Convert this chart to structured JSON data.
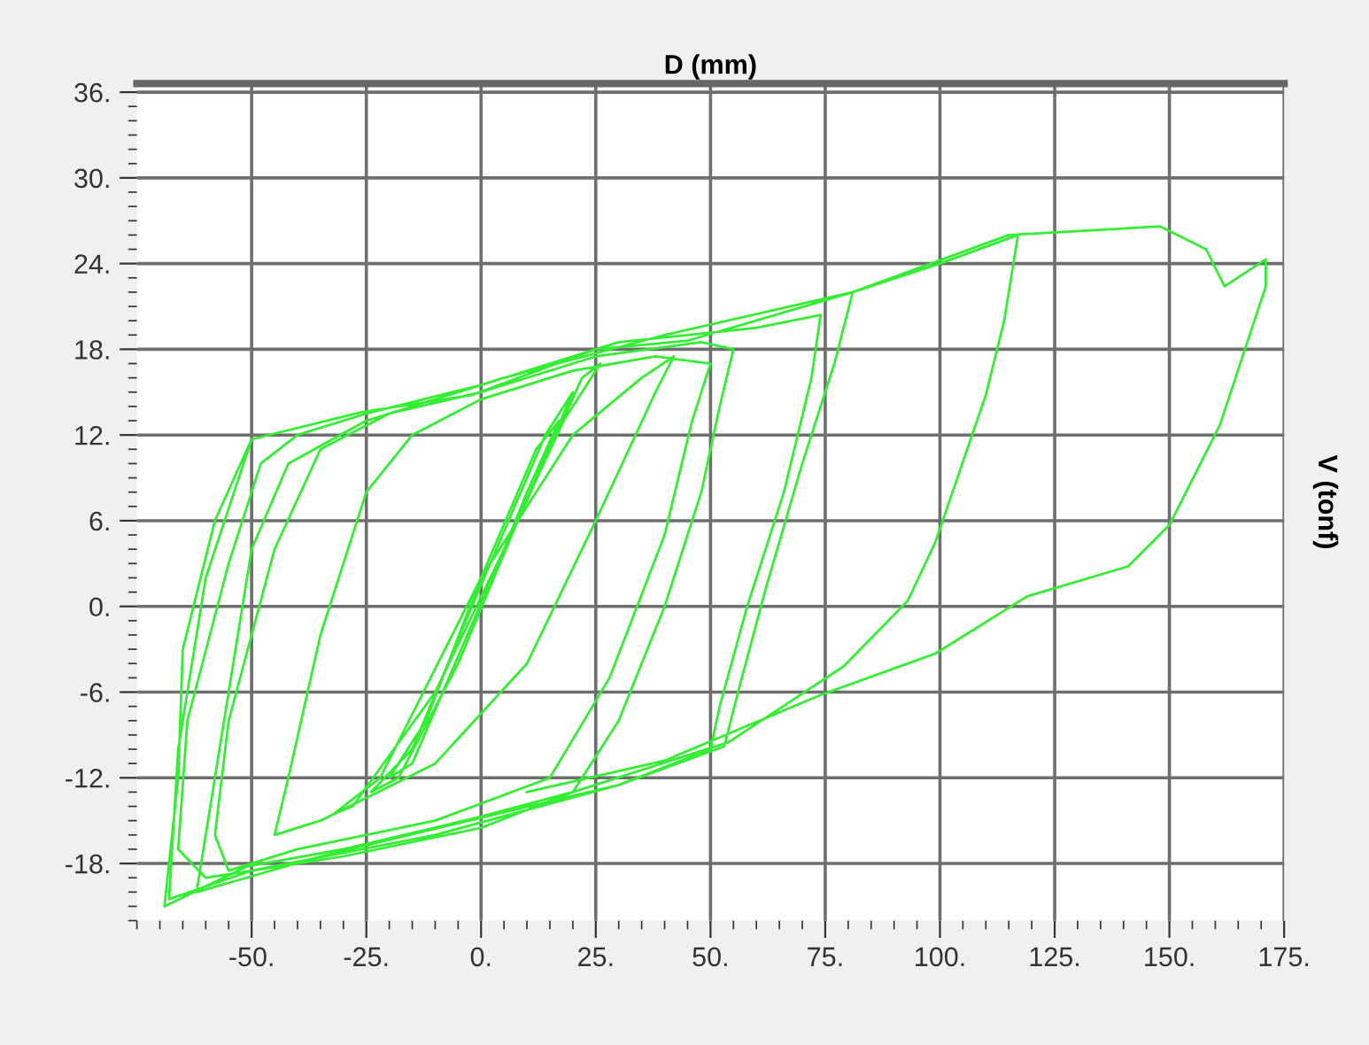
{
  "chart_data": {
    "type": "line",
    "xlabel": "D (mm)",
    "ylabel": "V (tonf)",
    "x": [
      0,
      10,
      17,
      12,
      0,
      -12,
      -20,
      -15,
      -3,
      12,
      20,
      14,
      -2,
      -15,
      -24,
      -18,
      -5,
      8,
      22,
      26,
      18,
      5,
      -10,
      -28,
      -32,
      -22,
      0,
      20,
      35,
      42,
      38,
      25,
      10,
      -10,
      -35,
      -45,
      -42,
      -35,
      -25,
      -15,
      0,
      20,
      38,
      50,
      46,
      40,
      28,
      15,
      -10,
      -40,
      -55,
      -58,
      -55,
      -45,
      -35,
      -20,
      0,
      25,
      48,
      55,
      52,
      48,
      40,
      30,
      20,
      0,
      -30,
      -60,
      -66,
      -64,
      -55,
      -48,
      -40,
      -25,
      0,
      30,
      60,
      74,
      72,
      66,
      58,
      52,
      50,
      30,
      0,
      -35,
      -62,
      -58,
      -50,
      -42,
      -25,
      5,
      40,
      81,
      77,
      70,
      62,
      56,
      53,
      30,
      -10,
      -50,
      -68,
      -66,
      -60,
      -50,
      -26,
      -2,
      25,
      45,
      81,
      100,
      117,
      114,
      110,
      99,
      93,
      79,
      54,
      20,
      -1,
      -30,
      -51,
      -69,
      -66,
      -65,
      -58,
      -50,
      -26,
      -2,
      25,
      45,
      81,
      115,
      148,
      158,
      162,
      171,
      171,
      161,
      150,
      141,
      119,
      99,
      74,
      40,
      10
    ],
    "series": [
      {
        "color": "#33ee33",
        "values": [
          0,
          8,
          13,
          11,
          2,
          -8,
          -12,
          -11,
          -2,
          9,
          15,
          12,
          0,
          -10,
          -13,
          -12,
          -4,
          6,
          16,
          17,
          13,
          4,
          -6,
          -14,
          -14.5,
          -12,
          2,
          12,
          16,
          17.5,
          15,
          6,
          -4,
          -11,
          -15,
          -16,
          -12,
          -2,
          8,
          12,
          14.5,
          16.5,
          17.5,
          17,
          13,
          5,
          -5,
          -12,
          -15,
          -17,
          -18.5,
          -16,
          -8,
          4,
          11,
          13.5,
          15,
          17.5,
          18.5,
          18,
          14,
          8,
          0,
          -8,
          -13,
          -15.5,
          -17.5,
          -19,
          -17,
          -8,
          3,
          10,
          12,
          13.5,
          15.5,
          18.5,
          19.5,
          20.4,
          16,
          8,
          0,
          -7,
          -10,
          -12.5,
          -14.8,
          -17.5,
          -20,
          -12,
          4,
          10,
          13,
          16,
          19,
          22,
          17,
          10,
          1.2,
          -6,
          -9.8,
          -12.5,
          -16,
          -18.5,
          -20.5,
          -10,
          2,
          11.7,
          13.6,
          14.8,
          18,
          18.6,
          22,
          24,
          26,
          20,
          14.8,
          4.5,
          0.4,
          -4.2,
          -9.5,
          -13,
          -14.8,
          -17,
          -18.2,
          -21,
          -12,
          -3,
          6,
          11.7,
          13.6,
          14.8,
          18,
          18.6,
          22,
          26,
          26.6,
          25,
          22.4,
          24.3,
          22.4,
          12.7,
          5.7,
          2.8,
          0.7,
          -3.3,
          -6.2,
          -10.8,
          -13
        ]
      }
    ],
    "xlim": [
      -75,
      175
    ],
    "ylim": [
      -22,
      36.6
    ],
    "xticks": [
      {
        "value": -50,
        "label": "-50."
      },
      {
        "value": -25,
        "label": "-25."
      },
      {
        "value": 0,
        "label": "0."
      },
      {
        "value": 25,
        "label": "25."
      },
      {
        "value": 50,
        "label": "50."
      },
      {
        "value": 75,
        "label": "75."
      },
      {
        "value": 100,
        "label": "100."
      },
      {
        "value": 125,
        "label": "125."
      },
      {
        "value": 150,
        "label": "150."
      },
      {
        "value": 175,
        "label": "175."
      }
    ],
    "yticks": [
      {
        "value": -18,
        "label": "-18."
      },
      {
        "value": -12,
        "label": "-12."
      },
      {
        "value": -6,
        "label": "-6."
      },
      {
        "value": 0,
        "label": "0."
      },
      {
        "value": 6,
        "label": "6."
      },
      {
        "value": 12,
        "label": "12."
      },
      {
        "value": 18,
        "label": "18."
      },
      {
        "value": 24,
        "label": "24."
      },
      {
        "value": 30,
        "label": "30."
      },
      {
        "value": 36,
        "label": "36."
      }
    ],
    "grid": true,
    "marker": "none",
    "line_style": "solid"
  }
}
